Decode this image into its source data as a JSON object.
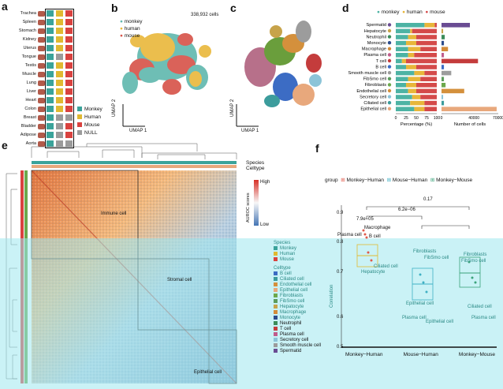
{
  "panels": {
    "a": "a",
    "b": "b",
    "c": "c",
    "d": "d",
    "e": "e",
    "f": "f"
  },
  "panel_a": {
    "organs": [
      "Trachea",
      "Spleen",
      "Stomach",
      "Kidney",
      "Uterus",
      "Tongue",
      "Testis",
      "Muscle",
      "Lung",
      "Liver",
      "Heart",
      "Colon",
      "Breast",
      "Bladder",
      "Adipose",
      "Aorta"
    ],
    "presence": [
      [
        1,
        1,
        1
      ],
      [
        1,
        1,
        1
      ],
      [
        1,
        1,
        1
      ],
      [
        1,
        1,
        1
      ],
      [
        1,
        1,
        1
      ],
      [
        1,
        0,
        1
      ],
      [
        1,
        1,
        1
      ],
      [
        1,
        1,
        1
      ],
      [
        1,
        1,
        1
      ],
      [
        1,
        1,
        1
      ],
      [
        1,
        1,
        1
      ],
      [
        1,
        1,
        1
      ],
      [
        1,
        0,
        0
      ],
      [
        1,
        0,
        1
      ],
      [
        1,
        0,
        1
      ],
      [
        1,
        0,
        0
      ]
    ],
    "legend": [
      {
        "label": "Monkey",
        "color": "#3aa39a"
      },
      {
        "label": "Human",
        "color": "#e0b931"
      },
      {
        "label": "Mouse",
        "color": "#d9423f"
      },
      {
        "label": "NULL",
        "color": "#9b9b9b"
      }
    ]
  },
  "panel_b": {
    "legend": [
      {
        "label": "monkey",
        "color": "#5fb7ae"
      },
      {
        "label": "human",
        "color": "#e9b83a"
      },
      {
        "label": "mouse",
        "color": "#d65248"
      }
    ],
    "cells_label": "338,932 cells",
    "xlabel": "UMAP 1",
    "ylabel": "UMAP 2"
  },
  "panel_c": {
    "xlabel": "UMAP 1",
    "ylabel": "UMAP 2"
  },
  "panel_d": {
    "legend": [
      {
        "label": "monkey",
        "color": "#4db3a4"
      },
      {
        "label": "human",
        "color": "#e8b63a"
      },
      {
        "label": "mouse",
        "color": "#d44a4a"
      }
    ],
    "xlabel_left": "Percentage (%)",
    "xlabel_right": "Number of cells",
    "pct_ticks": [
      "0",
      "25",
      "50",
      "75",
      "100"
    ],
    "count_ticks": [
      "0",
      "40000",
      "70000"
    ]
  },
  "chart_data": {
    "type": "bar",
    "categories": [
      "Spermatid",
      "Hepatocyte",
      "Neutrophil",
      "Monocyte",
      "Macrophage",
      "Plasma cell",
      "T cell",
      "B cell",
      "Smooth muscle cell",
      "FibSmo cell",
      "Fibroblasts",
      "Endothelial cell",
      "Secretory cell",
      "Ciliated cell",
      "Epithelial cell"
    ],
    "dot_colors": [
      "#6a4c93",
      "#c7a34a",
      "#3c8c5a",
      "#2c4c8c",
      "#d38c3a",
      "#c05c8c",
      "#c43c3c",
      "#3c6cc4",
      "#9c9c9c",
      "#5c9c5c",
      "#6ca84c",
      "#d4903c",
      "#8cc4d8",
      "#3c9c9c",
      "#e8a87c"
    ],
    "series": [
      {
        "name": "monkey",
        "values": [
          70,
          35,
          30,
          25,
          30,
          30,
          15,
          25,
          45,
          30,
          25,
          30,
          40,
          35,
          45
        ]
      },
      {
        "name": "human",
        "values": [
          25,
          5,
          20,
          25,
          30,
          15,
          10,
          25,
          25,
          30,
          25,
          20,
          20,
          35,
          25
        ]
      },
      {
        "name": "mouse",
        "values": [
          5,
          60,
          50,
          50,
          40,
          55,
          75,
          50,
          30,
          40,
          50,
          50,
          40,
          30,
          30
        ]
      }
    ],
    "cell_counts": [
      35000,
      2000,
      4000,
      3000,
      8000,
      3000,
      45000,
      3000,
      12000,
      3000,
      5000,
      28000,
      2000,
      3000,
      68000
    ],
    "xlim_pct": [
      0,
      100
    ],
    "xlim_count": [
      0,
      70000
    ]
  },
  "panel_e": {
    "annot_species": "Species",
    "annot_celltype": "Celltype",
    "colorbar_title": "AUROC scores",
    "colorbar_high": "High",
    "colorbar_low": "Low",
    "block_labels": {
      "immune": "Immune cell",
      "stromal": "Stromal cell",
      "epithelial": "Epithelial cell"
    },
    "species_legend_title": "Species",
    "species_legend": [
      {
        "label": "Monkey",
        "color": "#3aa39a"
      },
      {
        "label": "Human",
        "color": "#e0b931"
      },
      {
        "label": "Mouse",
        "color": "#d9423f"
      }
    ],
    "celltype_legend_title": "Celltype",
    "celltype_legend": [
      {
        "label": "B cell",
        "color": "#3c6cc4"
      },
      {
        "label": "Ciliated cell",
        "color": "#3c9c9c"
      },
      {
        "label": "Endothelial cell",
        "color": "#d4903c"
      },
      {
        "label": "Epithelial cell",
        "color": "#e8a87c"
      },
      {
        "label": "Fibroblasts",
        "color": "#6ca84c"
      },
      {
        "label": "FibSmo cell",
        "color": "#5c9c5c"
      },
      {
        "label": "Hepatocyte",
        "color": "#c7a34a"
      },
      {
        "label": "Macrophage",
        "color": "#d38c3a"
      },
      {
        "label": "Monocyte",
        "color": "#2c4c8c"
      },
      {
        "label": "Neutrophil",
        "color": "#3c8c5a"
      },
      {
        "label": "T cell",
        "color": "#c43c3c"
      },
      {
        "label": "Plasma cell",
        "color": "#c05c8c"
      },
      {
        "label": "Secretory cell",
        "color": "#8cc4d8"
      },
      {
        "label": "Smooth muscle cell",
        "color": "#9c9c9c"
      },
      {
        "label": "Spermatid",
        "color": "#6a4c93"
      }
    ]
  },
  "panel_f": {
    "group_title": "group",
    "groups": [
      {
        "label": "Monkey−Human",
        "color": "#e0594a"
      },
      {
        "label": "Mouse−Human",
        "color": "#3fb0c4"
      },
      {
        "label": "Monkey−Mouse",
        "color": "#3aa37a"
      }
    ],
    "ylabel": "Correlation",
    "yticks": [
      "0.9",
      "0.8",
      "0.7",
      "0.6",
      "0.5"
    ],
    "xcats": [
      "Monkey−Human",
      "Mouse−Human",
      "Monkey−Mouse"
    ],
    "pvalues": [
      "0.17",
      "6.2e−06",
      "7.9e−05"
    ],
    "point_labels": {
      "plasma_top": "Plasma cell",
      "macrophage": "Macrophage",
      "bcell": "B cell",
      "ciliated": "Ciliated cell",
      "hepatocyte": "Hepatocyte",
      "fibroblasts1": "Fibroblasts",
      "fibsmo1": "FibSmo cell",
      "fibroblasts2": "Fibroblasts",
      "fibsmo2": "FibSmo cell",
      "epithelial1": "Epithelial cell",
      "ciliated2": "Ciliated cell",
      "plasma2": "Plasma cell",
      "plasma3": "Plasma cell",
      "epithelial2": "Epithelial cell"
    }
  }
}
